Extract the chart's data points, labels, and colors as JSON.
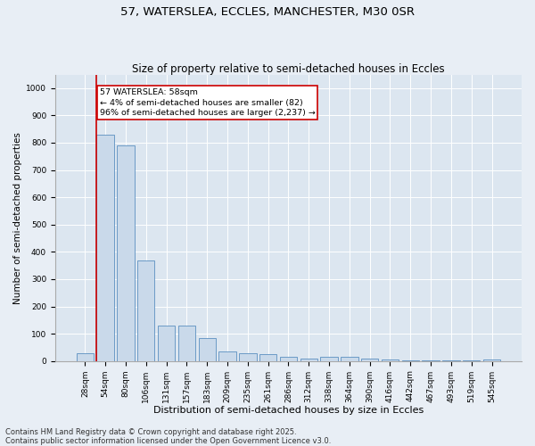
{
  "title1": "57, WATERSLEA, ECCLES, MANCHESTER, M30 0SR",
  "title2": "Size of property relative to semi-detached houses in Eccles",
  "xlabel": "Distribution of semi-detached houses by size in Eccles",
  "ylabel": "Number of semi-detached properties",
  "footer1": "Contains HM Land Registry data © Crown copyright and database right 2025.",
  "footer2": "Contains public sector information licensed under the Open Government Licence v3.0.",
  "annotation_line1": "57 WATERSLEA: 58sqm",
  "annotation_line2": "← 4% of semi-detached houses are smaller (82)",
  "annotation_line3": "96% of semi-detached houses are larger (2,237) →",
  "categories": [
    "28sqm",
    "54sqm",
    "80sqm",
    "106sqm",
    "131sqm",
    "157sqm",
    "183sqm",
    "209sqm",
    "235sqm",
    "261sqm",
    "286sqm",
    "312sqm",
    "338sqm",
    "364sqm",
    "390sqm",
    "416sqm",
    "442sqm",
    "467sqm",
    "493sqm",
    "519sqm",
    "545sqm"
  ],
  "values": [
    30,
    830,
    790,
    370,
    130,
    130,
    85,
    35,
    30,
    25,
    15,
    10,
    15,
    15,
    10,
    5,
    3,
    1,
    1,
    1,
    5
  ],
  "bar_color": "#c9d9ea",
  "bar_edge_color": "#5b8fc0",
  "vline_color": "#cc0000",
  "annotation_box_edge_color": "#cc0000",
  "ylim": [
    0,
    1050
  ],
  "yticks": [
    0,
    100,
    200,
    300,
    400,
    500,
    600,
    700,
    800,
    900,
    1000
  ],
  "bg_color": "#e8eef5",
  "plot_bg_color": "#dce6f0",
  "title1_fontsize": 9.5,
  "title2_fontsize": 8.5,
  "xlabel_fontsize": 8,
  "ylabel_fontsize": 7.5,
  "tick_fontsize": 6.5,
  "annotation_fontsize": 6.8,
  "footer_fontsize": 6.0
}
